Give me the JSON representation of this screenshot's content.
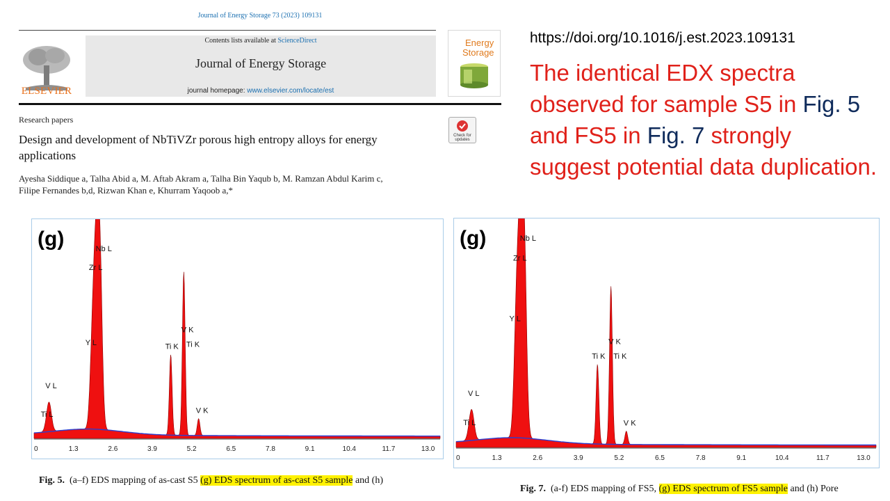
{
  "header": {
    "citation": "Journal of Energy Storage 73 (2023) 109131",
    "contents_prefix": "Contents lists available at ",
    "contents_link": "ScienceDirect",
    "journal_name": "Journal of Energy Storage",
    "homepage_prefix": "journal homepage: ",
    "homepage_link": "www.elsevier.com/locate/est",
    "publisher": "ELSEVIER",
    "cover_title_1": "Energy",
    "cover_title_2": "Storage",
    "check_updates": "Check for updates"
  },
  "article": {
    "type": "Research papers",
    "title": "Design and development of NbTiVZr porous high entropy alloys for energy applications",
    "authors_line1": "Ayesha Siddique a, Talha Abid a, M. Aftab Akram a, Talha Bin Yaqub b, M. Ramzan Abdul Karim c,",
    "authors_line2": "Filipe Fernandes b,d, Rizwan Khan e, Khurram Yaqoob a,*"
  },
  "commentary": {
    "doi": "https://doi.org/10.1016/j.est.2023.109131",
    "statement_part1": "The identical EDX spectra observed for sample S5 in ",
    "fig5_ref": "Fig. 5",
    "statement_part2": " and FS5 in ",
    "fig7_ref": "Fig. 7",
    "statement_part3": " strongly suggest potential data duplication."
  },
  "figures": {
    "s5": {
      "panel_label": "(g)",
      "caption_bold": "Fig. 5.",
      "caption_pre": "(a–f) EDS mapping of as-cast S5 ",
      "caption_highlight": "(g) EDS spectrum of as-cast S5 sample",
      "caption_post": " and (h)"
    },
    "fs5": {
      "panel_label": "(g)",
      "caption_bold": "Fig. 7.",
      "caption_pre": "(a-f) EDS mapping of FS5, ",
      "caption_highlight": "(g) EDS spectrum of FS5 sample",
      "caption_post": " and (h) Pore"
    }
  },
  "chart_data": [
    {
      "type": "area",
      "panel": "s5",
      "x_ticks": [
        "0",
        "1.3",
        "2.6",
        "3.9",
        "5.2",
        "6.5",
        "7.8",
        "9.1",
        "10.4",
        "11.7",
        "13.0"
      ],
      "xlim": [
        0,
        13.4
      ],
      "colors": {
        "fill": "#ef1010",
        "outline": "#8b0000",
        "background": "#2a3fd0"
      },
      "peaks": [
        {
          "label": "Ti L",
          "x": 0.45,
          "y": 0.05
        },
        {
          "label": "V L",
          "x": 0.51,
          "y": 0.1
        },
        {
          "label": "Y L",
          "x": 1.92,
          "y": 0.37
        },
        {
          "label": "Zr L",
          "x": 2.04,
          "y": 0.73
        },
        {
          "label": "Nb L",
          "x": 2.17,
          "y": 0.82
        },
        {
          "label": "Ti K",
          "x": 4.51,
          "y": 0.38
        },
        {
          "label": "V K",
          "x": 4.95,
          "y": 0.4
        },
        {
          "label": "Ti K",
          "x": 4.93,
          "y": 0.39
        },
        {
          "label": "V K",
          "x": 5.43,
          "y": 0.08
        }
      ]
    },
    {
      "type": "area",
      "panel": "fs5",
      "x_ticks": [
        "0",
        "1.3",
        "2.6",
        "3.9",
        "5.2",
        "6.5",
        "7.8",
        "9.1",
        "10.4",
        "11.7",
        "13.0"
      ],
      "xlim": [
        0,
        13.4
      ],
      "colors": {
        "fill": "#ef1010",
        "outline": "#8b0000",
        "background": "#2a3fd0"
      },
      "peaks": [
        {
          "label": "Ti L",
          "x": 0.45,
          "y": 0.05
        },
        {
          "label": "V L",
          "x": 0.51,
          "y": 0.1
        },
        {
          "label": "Y L",
          "x": 1.92,
          "y": 0.5
        },
        {
          "label": "Zr L",
          "x": 2.04,
          "y": 0.78
        },
        {
          "label": "Nb L",
          "x": 2.17,
          "y": 0.87
        },
        {
          "label": "Ti K",
          "x": 4.51,
          "y": 0.36
        },
        {
          "label": "V K",
          "x": 4.95,
          "y": 0.37
        },
        {
          "label": "Ti K",
          "x": 4.93,
          "y": 0.36
        },
        {
          "label": "V K",
          "x": 5.43,
          "y": 0.06
        }
      ]
    }
  ]
}
